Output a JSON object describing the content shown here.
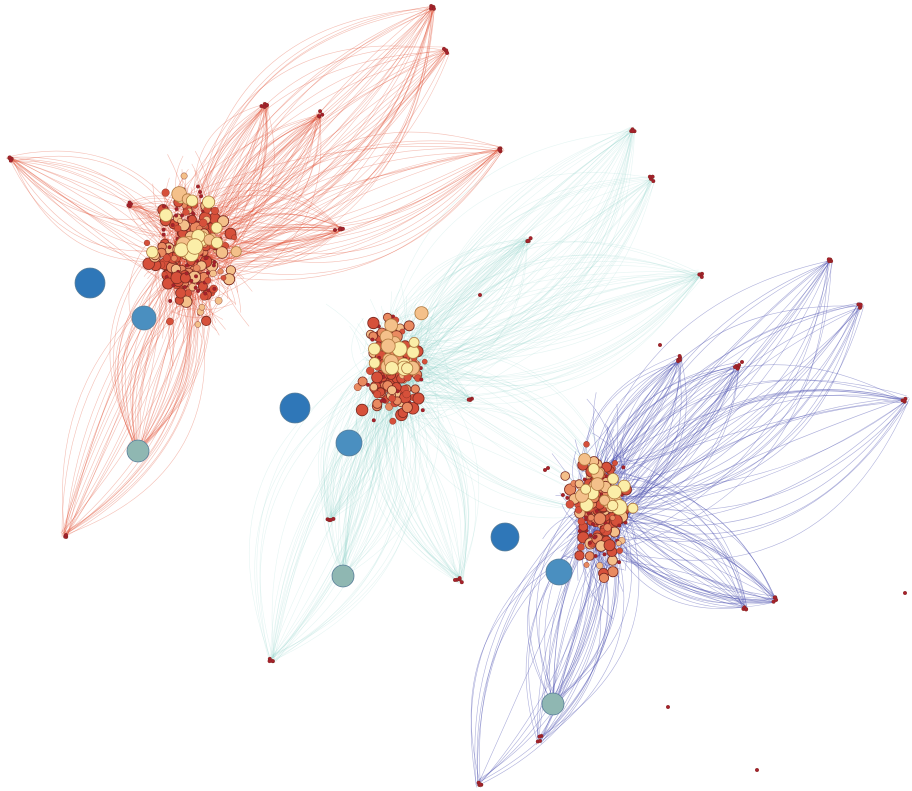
{
  "diagram": {
    "type": "network-graph",
    "text_labels": [],
    "colors": {
      "background": "#ffffff",
      "edges_red": "#e04a2f",
      "edges_teal": "#8fd0c9",
      "edges_blue": "#4b4fb0",
      "node_dark_red": "#a8202c",
      "node_red": "#d6503a",
      "node_salmon": "#e98a60",
      "node_peach": "#f4c08a",
      "node_cream": "#fbeea8",
      "node_blue": "#2f77b8",
      "node_steel_blue": "#4a8fc0",
      "node_grey_teal": "#8fb7b2"
    },
    "clusters": [
      {
        "name": "red",
        "edge_color": "edges_red"
      },
      {
        "name": "teal",
        "edge_color": "edges_teal"
      },
      {
        "name": "blue",
        "edge_color": "edges_blue"
      }
    ]
  }
}
